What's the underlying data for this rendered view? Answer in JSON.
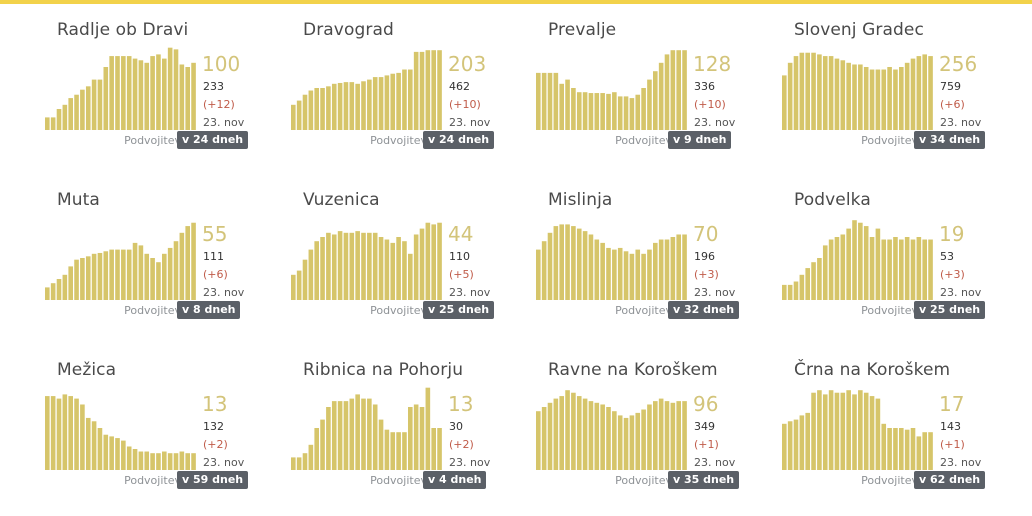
{
  "bar_color": "#d6c56a",
  "accent_color": "#f2d24b",
  "cards": [
    {
      "title": "Radlje ob Dravi",
      "big": "100",
      "num": "233",
      "delta": "(+12)",
      "date": "23. nov",
      "dbl_label": "Podvojitev",
      "dbl_badge": "v 24 dneh",
      "bars": [
        0.15,
        0.15,
        0.25,
        0.3,
        0.38,
        0.42,
        0.48,
        0.52,
        0.6,
        0.6,
        0.75,
        0.88,
        0.88,
        0.88,
        0.88,
        0.85,
        0.83,
        0.8,
        0.88,
        0.9,
        0.85,
        0.98,
        0.96,
        0.78,
        0.75,
        0.8
      ]
    },
    {
      "title": "Dravograd",
      "big": "203",
      "num": "462",
      "delta": "(+10)",
      "date": "23. nov",
      "dbl_label": "Podvojitev",
      "dbl_badge": "v 24 dneh",
      "bars": [
        0.3,
        0.35,
        0.42,
        0.47,
        0.5,
        0.5,
        0.52,
        0.55,
        0.56,
        0.57,
        0.57,
        0.55,
        0.58,
        0.6,
        0.63,
        0.63,
        0.65,
        0.67,
        0.68,
        0.72,
        0.72,
        0.93,
        0.93,
        0.95,
        0.95,
        0.95
      ]
    },
    {
      "title": "Prevalje",
      "big": "128",
      "num": "336",
      "delta": "(+10)",
      "date": "23. nov",
      "dbl_label": "Podvojitev",
      "dbl_badge": "v 9 dneh",
      "bars": [
        0.68,
        0.68,
        0.68,
        0.68,
        0.55,
        0.6,
        0.5,
        0.45,
        0.45,
        0.44,
        0.44,
        0.44,
        0.43,
        0.45,
        0.4,
        0.4,
        0.38,
        0.42,
        0.5,
        0.6,
        0.7,
        0.8,
        0.9,
        0.95,
        0.95,
        0.95
      ]
    },
    {
      "title": "Slovenj Gradec",
      "big": "256",
      "num": "759",
      "delta": "(+6)",
      "date": "23. nov",
      "dbl_label": "Podvojitev",
      "dbl_badge": "v 34 dneh",
      "bars": [
        0.65,
        0.8,
        0.88,
        0.92,
        0.92,
        0.92,
        0.9,
        0.88,
        0.88,
        0.85,
        0.83,
        0.8,
        0.78,
        0.78,
        0.75,
        0.72,
        0.72,
        0.72,
        0.75,
        0.72,
        0.75,
        0.8,
        0.85,
        0.88,
        0.9,
        0.88
      ]
    },
    {
      "title": "Muta",
      "big": "55",
      "num": "111",
      "delta": "(+6)",
      "date": "23. nov",
      "dbl_label": "Podvojitev",
      "dbl_badge": "v 8 dneh",
      "bars": [
        0.15,
        0.2,
        0.25,
        0.3,
        0.4,
        0.48,
        0.5,
        0.52,
        0.55,
        0.56,
        0.58,
        0.6,
        0.6,
        0.6,
        0.6,
        0.68,
        0.65,
        0.55,
        0.5,
        0.45,
        0.55,
        0.62,
        0.7,
        0.8,
        0.88,
        0.92
      ]
    },
    {
      "title": "Vuzenica",
      "big": "44",
      "num": "110",
      "delta": "(+5)",
      "date": "23. nov",
      "dbl_label": "Podvojitev",
      "dbl_badge": "v 25 dneh",
      "bars": [
        0.3,
        0.35,
        0.48,
        0.6,
        0.7,
        0.75,
        0.8,
        0.78,
        0.82,
        0.8,
        0.8,
        0.82,
        0.8,
        0.8,
        0.8,
        0.75,
        0.72,
        0.68,
        0.75,
        0.7,
        0.55,
        0.78,
        0.85,
        0.92,
        0.9,
        0.92
      ]
    },
    {
      "title": "Mislinja",
      "big": "70",
      "num": "196",
      "delta": "(+3)",
      "date": "23. nov",
      "dbl_label": "Podvojitev",
      "dbl_badge": "v 32 dneh",
      "bars": [
        0.6,
        0.7,
        0.8,
        0.88,
        0.9,
        0.9,
        0.88,
        0.85,
        0.82,
        0.78,
        0.72,
        0.68,
        0.62,
        0.6,
        0.62,
        0.58,
        0.55,
        0.6,
        0.55,
        0.6,
        0.68,
        0.72,
        0.72,
        0.75,
        0.78,
        0.78
      ]
    },
    {
      "title": "Podvelka",
      "big": "19",
      "num": "53",
      "delta": "(+3)",
      "date": "23. nov",
      "dbl_label": "Podvojitev",
      "dbl_badge": "v 25 dneh",
      "bars": [
        0.18,
        0.18,
        0.22,
        0.3,
        0.38,
        0.45,
        0.5,
        0.65,
        0.72,
        0.75,
        0.78,
        0.85,
        0.95,
        0.92,
        0.88,
        0.75,
        0.85,
        0.72,
        0.72,
        0.75,
        0.72,
        0.75,
        0.72,
        0.75,
        0.72,
        0.72
      ]
    },
    {
      "title": "Mežica",
      "big": "13",
      "num": "132",
      "delta": "(+2)",
      "date": "23. nov",
      "dbl_label": "Podvojitev",
      "dbl_badge": "v 59 dneh",
      "bars": [
        0.88,
        0.88,
        0.85,
        0.9,
        0.88,
        0.85,
        0.78,
        0.62,
        0.58,
        0.5,
        0.42,
        0.4,
        0.38,
        0.35,
        0.28,
        0.25,
        0.22,
        0.22,
        0.2,
        0.2,
        0.22,
        0.2,
        0.2,
        0.22,
        0.2,
        0.2
      ]
    },
    {
      "title": "Ribnica na Pohorju",
      "big": "13",
      "num": "30",
      "delta": "(+2)",
      "date": "23. nov",
      "dbl_label": "Podvojitev",
      "dbl_badge": "v 4 dneh",
      "bars": [
        0.15,
        0.15,
        0.2,
        0.3,
        0.5,
        0.6,
        0.75,
        0.82,
        0.82,
        0.82,
        0.85,
        0.9,
        0.85,
        0.85,
        0.78,
        0.6,
        0.48,
        0.45,
        0.45,
        0.45,
        0.75,
        0.78,
        0.75,
        0.98,
        0.5,
        0.5
      ]
    },
    {
      "title": "Ravne na Koroškem",
      "big": "96",
      "num": "349",
      "delta": "(+1)",
      "date": "23. nov",
      "dbl_label": "Podvojitev",
      "dbl_badge": "v 35 dneh",
      "bars": [
        0.7,
        0.75,
        0.8,
        0.85,
        0.88,
        0.95,
        0.92,
        0.88,
        0.85,
        0.82,
        0.8,
        0.78,
        0.75,
        0.7,
        0.65,
        0.62,
        0.65,
        0.68,
        0.72,
        0.78,
        0.82,
        0.85,
        0.82,
        0.8,
        0.82,
        0.82
      ]
    },
    {
      "title": "Črna na Koroškem",
      "big": "17",
      "num": "143",
      "delta": "(+1)",
      "date": "23. nov",
      "dbl_label": "Podvojitev",
      "dbl_badge": "v 62 dneh",
      "bars": [
        0.55,
        0.58,
        0.6,
        0.65,
        0.68,
        0.92,
        0.95,
        0.9,
        0.95,
        0.92,
        0.92,
        0.95,
        0.9,
        0.95,
        0.92,
        0.88,
        0.85,
        0.55,
        0.5,
        0.5,
        0.5,
        0.48,
        0.5,
        0.4,
        0.45,
        0.45
      ]
    }
  ]
}
